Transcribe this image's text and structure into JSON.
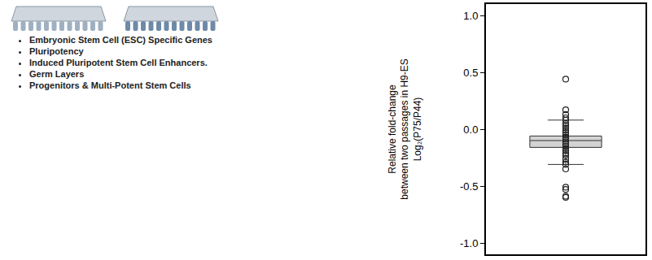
{
  "list": {
    "items": [
      "Embryonic Stem Cell (ESC) Specific Genes",
      "Pluripotency",
      "Induced Pluripotent Stem Cell Enhancers.",
      "Germ Layers",
      "Progenitors & Multi-Potent Stem Cells"
    ]
  },
  "chart_data": {
    "type": "box",
    "ylabel": [
      "Relative fold-change",
      "between two passages in H9-ES",
      "Log₂(P75/P44)"
    ],
    "ylim": [
      -1.1,
      1.1
    ],
    "yticks": [
      {
        "value": -1.0,
        "label": "-1.0"
      },
      {
        "value": -0.5,
        "label": "-0.5"
      },
      {
        "value": 0,
        "label": "0.0"
      },
      {
        "value": 0.5,
        "label": "0.5"
      },
      {
        "value": 1.0,
        "label": "1.0"
      }
    ],
    "color": "#d3d3d3",
    "q1": -0.16,
    "median": -0.1,
    "q3": -0.06,
    "lowerfence": -0.31,
    "upperfence": 0.08,
    "points": [
      0.44,
      0.17,
      0.13,
      0.1,
      0.08,
      0.05,
      0.03,
      0.01,
      -0.01,
      -0.03,
      -0.05,
      -0.07,
      -0.09,
      -0.11,
      -0.13,
      -0.15,
      -0.17,
      -0.19,
      -0.21,
      -0.23,
      -0.26,
      -0.29,
      -0.31,
      -0.35,
      -0.51,
      -0.53,
      -0.59,
      -0.6
    ],
    "marker": "open-circle"
  }
}
